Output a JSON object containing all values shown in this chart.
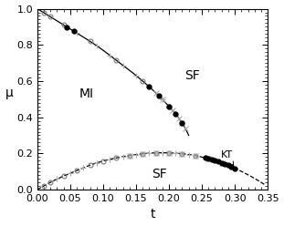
{
  "title": "",
  "xlabel": "t",
  "ylabel": "μ",
  "xlim": [
    0,
    0.35
  ],
  "ylim": [
    0.0,
    1.0
  ],
  "xticks": [
    0.0,
    0.05,
    0.1,
    0.15,
    0.2,
    0.25,
    0.3,
    0.35
  ],
  "yticks": [
    0.0,
    0.2,
    0.4,
    0.6,
    0.8,
    1.0
  ],
  "label_MI": "MI",
  "label_SF_top": "SF",
  "label_SF_bot": "SF",
  "label_KT": "KT",
  "upper_curve_t": [
    0.0,
    0.02,
    0.04,
    0.06,
    0.08,
    0.1,
    0.12,
    0.14,
    0.16,
    0.18,
    0.2,
    0.215,
    0.23
  ],
  "upper_curve_mu": [
    1.0,
    0.955,
    0.91,
    0.865,
    0.82,
    0.77,
    0.715,
    0.66,
    0.6,
    0.535,
    0.46,
    0.395,
    0.3
  ],
  "lower_curve_t": [
    0.0,
    0.02,
    0.04,
    0.06,
    0.08,
    0.1,
    0.12,
    0.14,
    0.16,
    0.18,
    0.2,
    0.22,
    0.24,
    0.26,
    0.28,
    0.3,
    0.32,
    0.34
  ],
  "lower_curve_mu": [
    0.0,
    0.04,
    0.075,
    0.105,
    0.135,
    0.158,
    0.175,
    0.188,
    0.198,
    0.203,
    0.203,
    0.198,
    0.188,
    0.17,
    0.148,
    0.118,
    0.082,
    0.04
  ],
  "fontsize_label": 10,
  "fontsize_text": 10,
  "fontsize_tick": 8,
  "fontsize_KT": 8,
  "marker_size": 3.5,
  "line_width": 0.9
}
